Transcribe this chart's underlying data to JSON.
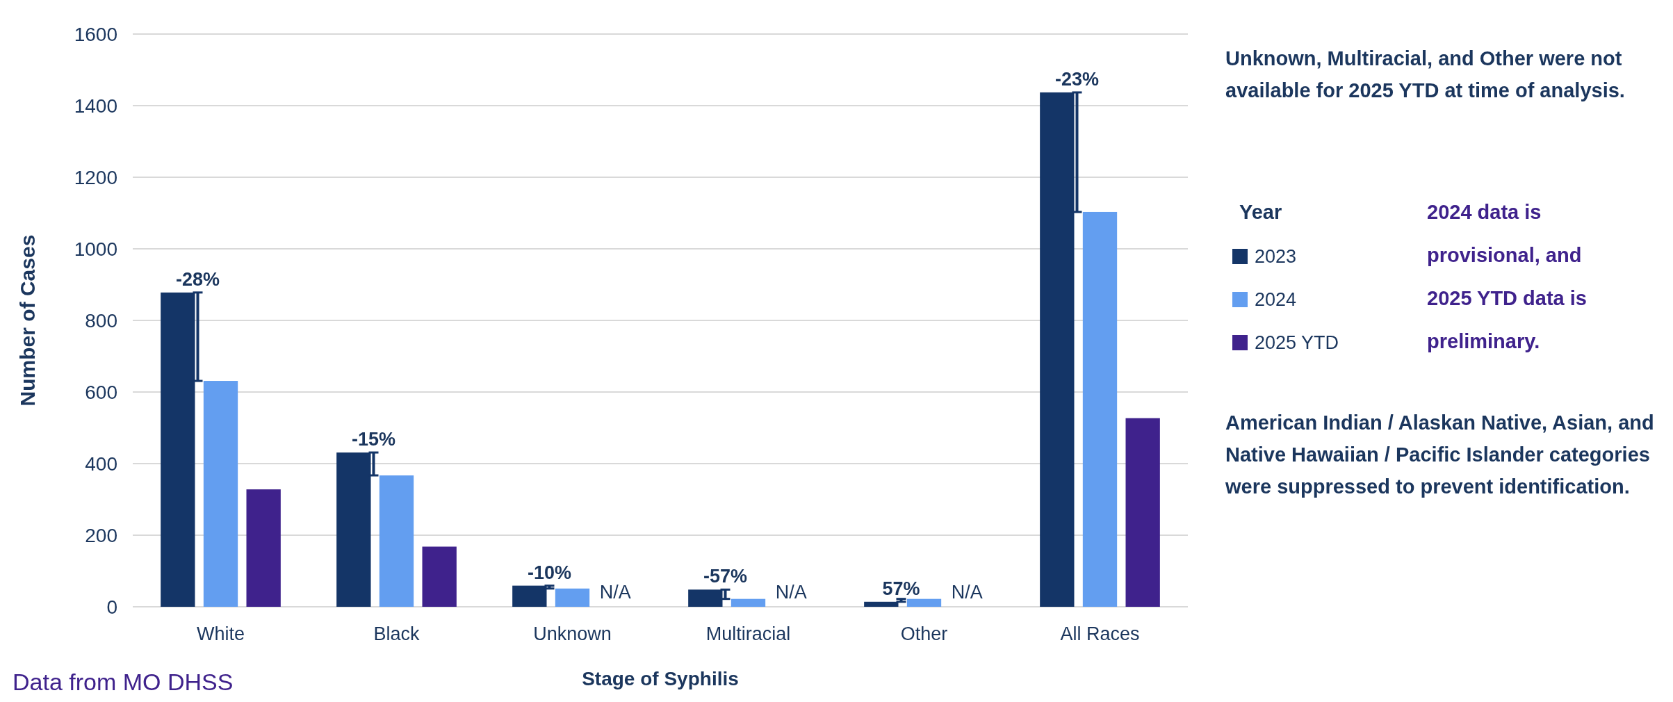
{
  "chart_data": {
    "type": "bar",
    "xlabel": "Stage of Syphilis",
    "ylabel": "Number of Cases",
    "legend_title": "Year",
    "legend": "right",
    "categories": [
      "White",
      "Black",
      "Unknown",
      "Multiracial",
      "Other",
      "All Races"
    ],
    "series": [
      {
        "name": "2023",
        "color": "#143567",
        "values": [
          878,
          431,
          59,
          48,
          14,
          1437
        ]
      },
      {
        "name": "2024",
        "color": "#639ef0",
        "values": [
          631,
          367,
          51,
          22,
          22,
          1103
        ]
      },
      {
        "name": "2025 YTD",
        "color": "#3f228c",
        "values": [
          328,
          168,
          null,
          null,
          null,
          527
        ]
      }
    ],
    "ylim": [
      0,
      1600
    ],
    "yticks": [
      0,
      200,
      400,
      600,
      800,
      1000,
      1200,
      1400,
      1600
    ],
    "grid": "y",
    "annotations": [
      {
        "text": "-28%",
        "y": 878
      },
      {
        "text": "-15%",
        "y": 431
      },
      {
        "text": "-10%",
        "y": 59
      },
      {
        "text": "-57%",
        "y": 48
      },
      {
        "text": "57%",
        "y": 14
      },
      {
        "text": "-23%",
        "y": 1437
      },
      {
        "text": "N/A",
        "x": "Unknown",
        "y": 0
      },
      {
        "text": "N/A",
        "x": "Multiracial",
        "y": 0
      },
      {
        "text": "N/A",
        "x": "Other",
        "y": 0
      },
      "Unknown, Multiracial, and Other were not available for 2025 YTD at time of analysis.",
      "2024 data is provisional, and 2025 YTD data is preliminary.",
      "American Indian / Alaskan Native, Asian, and Native Hawaiian / Pacific Islander categories were suppressed to prevent identification.",
      "Data from MO DHSS"
    ]
  }
}
